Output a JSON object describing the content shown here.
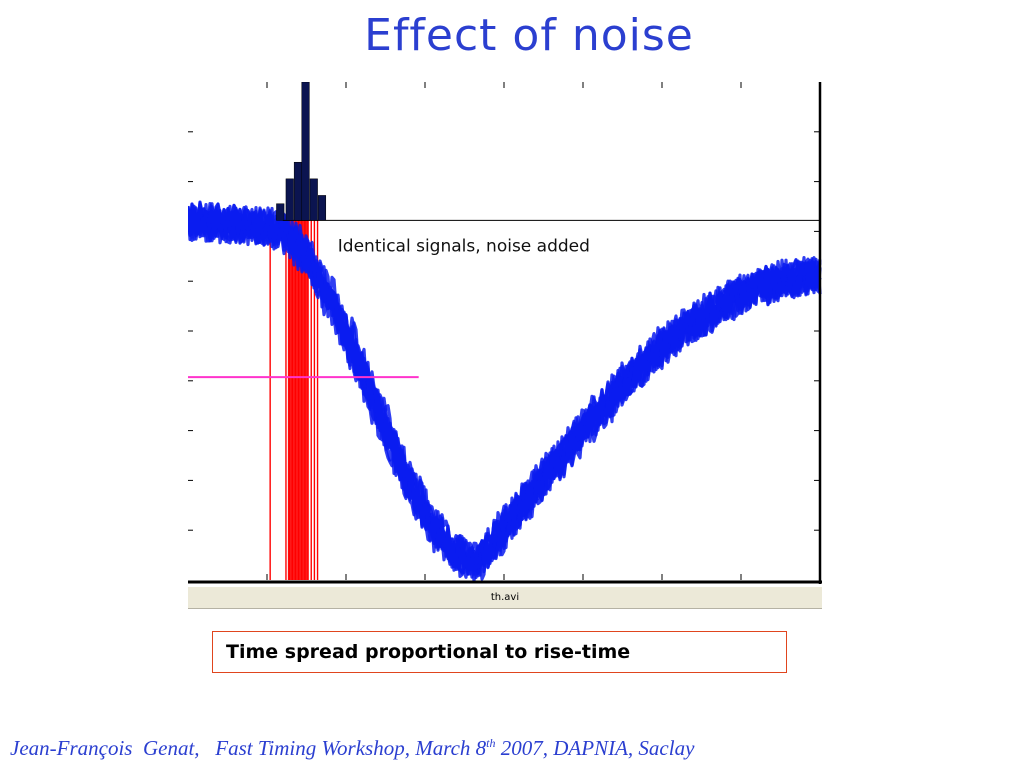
{
  "slide": {
    "title": "Effect of noise",
    "callout": "Time spread proportional to rise-time",
    "statusbar": "th.avi",
    "footer": {
      "author": "Jean-François  Genat,   Fast Timing Workshop, March 8",
      "sup": "th",
      "rest": " 2007, DAPNIA, Saclay"
    }
  },
  "colors": {
    "title": "#2b3fd0",
    "traces": "#0a1cf0",
    "histogram": "#0b1450",
    "crossing_lines": "#ff0000",
    "threshold": "#ff33cc",
    "callout_border": "#e0451e"
  },
  "chart_data": {
    "type": "line",
    "annotation": "Identical signals, noise added",
    "description_elements": [
      "noisy signal traces",
      "threshold line",
      "threshold-crossing time markers",
      "crossing-time histogram"
    ],
    "signal": {
      "baseline": 0.85,
      "minimum": -1.0,
      "minimum_time": 0.46,
      "crossing_threshold": 0.0,
      "end_value": 0.55,
      "noise_band": 0.12,
      "trace_count": 12
    },
    "threshold_level": 0.0,
    "crossing_times": [
      0.13,
      0.155,
      0.16,
      0.165,
      0.17,
      0.175,
      0.18,
      0.185,
      0.19,
      0.195,
      0.2,
      0.205
    ],
    "histogram": {
      "bin_width": 0.012,
      "bins": [
        {
          "x": 0.14,
          "count": 12
        },
        {
          "x": 0.155,
          "count": 30
        },
        {
          "x": 0.168,
          "count": 42
        },
        {
          "x": 0.18,
          "count": 100
        },
        {
          "x": 0.193,
          "count": 30
        },
        {
          "x": 0.206,
          "count": 18
        }
      ]
    },
    "x_range": [
      0,
      1
    ],
    "y_range": [
      -1.1,
      1.6
    ]
  }
}
